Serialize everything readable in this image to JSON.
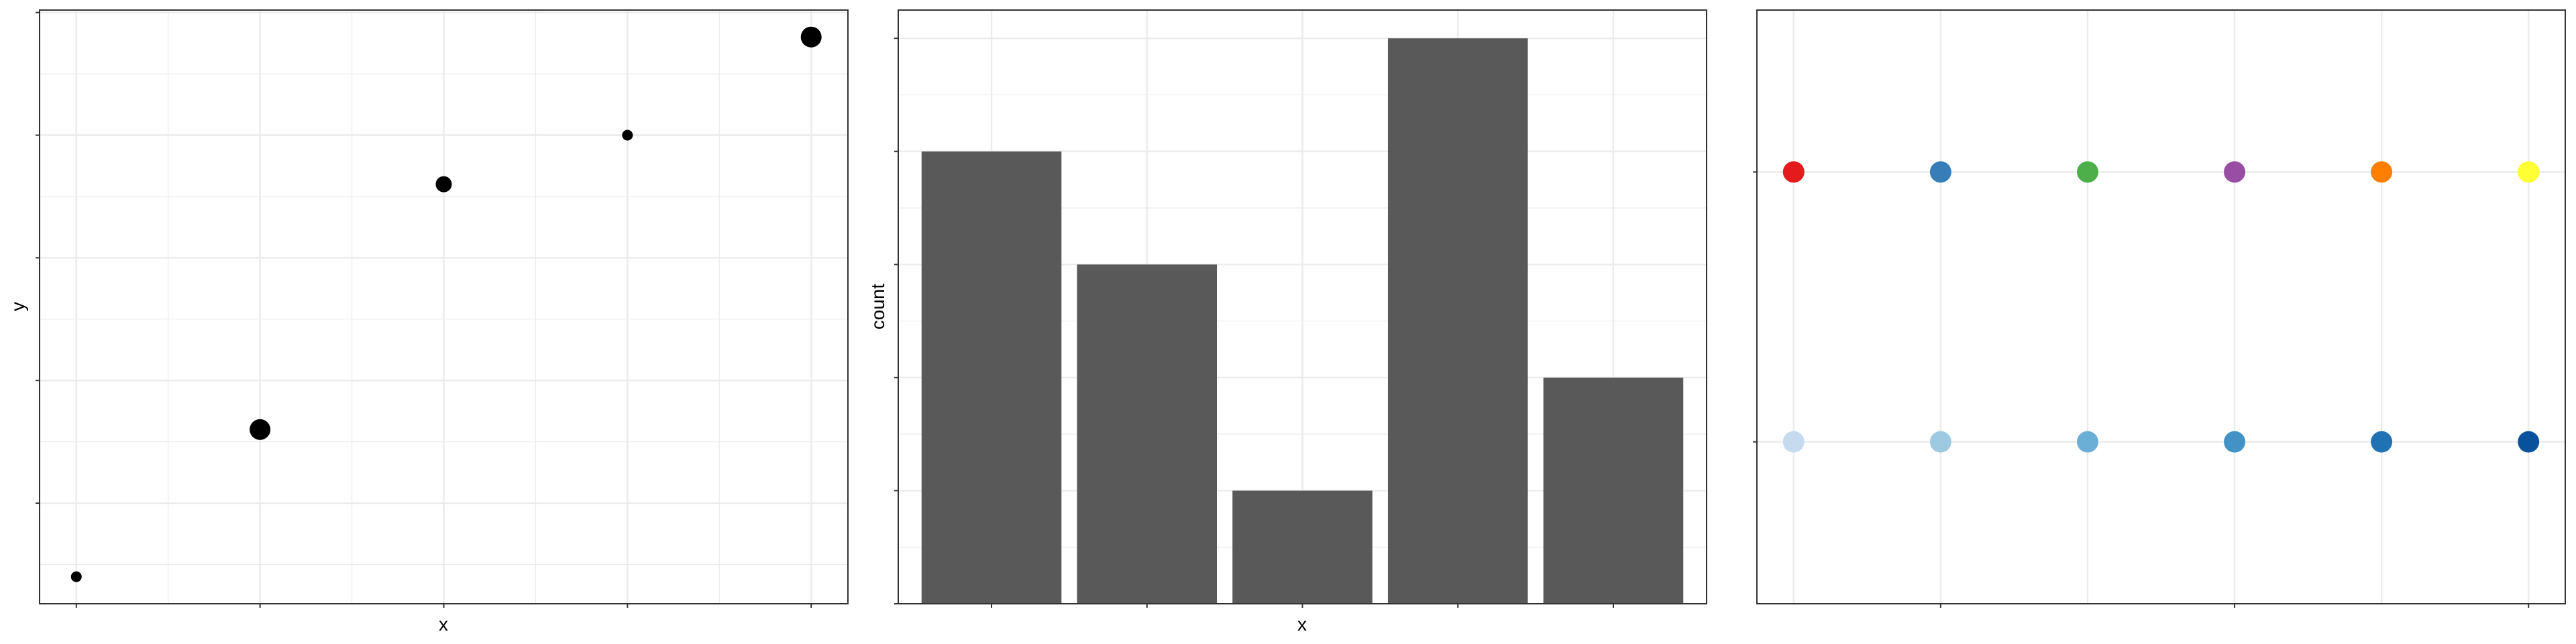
{
  "chart_data": [
    {
      "type": "scatter",
      "xlabel": "x",
      "ylabel": "y",
      "x": [
        1,
        2,
        3,
        4,
        5
      ],
      "y": [
        0.4,
        1.6,
        3.6,
        4.0,
        4.8
      ],
      "size": [
        1,
        3,
        2,
        1,
        3
      ],
      "xlim": [
        0.8,
        5.2
      ],
      "ylim": [
        0.18,
        5.02
      ],
      "x_ticks": [
        1,
        2,
        3,
        4,
        5
      ],
      "y_ticks": [
        1,
        2,
        3,
        4,
        5
      ],
      "tick_labels_shown": false,
      "grid": true,
      "point_color": "#000000"
    },
    {
      "type": "bar",
      "xlabel": "x",
      "ylabel": "count",
      "categories": [
        "1",
        "2",
        "3",
        "4",
        "5"
      ],
      "values": [
        4,
        3,
        1,
        5,
        2
      ],
      "ylim": [
        0,
        5.25
      ],
      "y_ticks": [
        0,
        1,
        2,
        3,
        4,
        5
      ],
      "tick_labels_shown": false,
      "grid": true,
      "bar_color": "#595959"
    },
    {
      "type": "scatter",
      "xlabel": "",
      "ylabel": "",
      "x": [
        1,
        2,
        3,
        4,
        5,
        6
      ],
      "rows": [
        {
          "y": 2,
          "colors": [
            "#E41A1C",
            "#377EB8",
            "#4DAF4A",
            "#984EA3",
            "#FF7F00",
            "#FFFF33"
          ]
        },
        {
          "y": 1,
          "colors": [
            "#C6DBEF",
            "#9ECAE1",
            "#6BAED6",
            "#4292C6",
            "#2171B5",
            "#08519C"
          ]
        }
      ],
      "xlim": [
        0.75,
        6.25
      ],
      "ylim": [
        0.4,
        2.6
      ],
      "x_ticks": [
        2,
        4,
        6
      ],
      "y_ticks": [
        1,
        2
      ],
      "tick_labels_shown": false,
      "grid": true
    }
  ]
}
